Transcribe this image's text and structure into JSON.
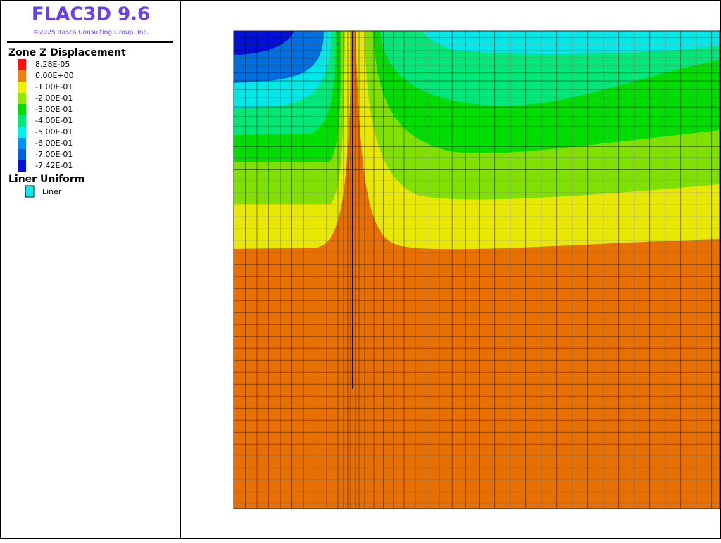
{
  "header": {
    "title": "FLAC3D 9.6",
    "copyright": "©2025 Itasca Consulting Group, Inc."
  },
  "legend": {
    "title": "Zone Z Displacement",
    "items": [
      {
        "label": "8.28E-05",
        "color": "#ff1010"
      },
      {
        "label": "0.00E+00",
        "color": "#f08010"
      },
      {
        "label": "-1.00E-01",
        "color": "#f0f000"
      },
      {
        "label": "-2.00E-01",
        "color": "#90e800"
      },
      {
        "label": "-3.00E-01",
        "color": "#00dd00"
      },
      {
        "label": "-4.00E-01",
        "color": "#00e878"
      },
      {
        "label": "-5.00E-01",
        "color": "#00f0f0"
      },
      {
        "label": "-6.00E-01",
        "color": "#0090f0"
      },
      {
        "label": "-7.00E-01",
        "color": "#0060e0"
      },
      {
        "label": "-7.42E-01",
        "color": "#0010e0"
      }
    ]
  },
  "liner": {
    "title": "Liner Uniform",
    "label": "Liner",
    "color": "#00f0f0"
  }
}
